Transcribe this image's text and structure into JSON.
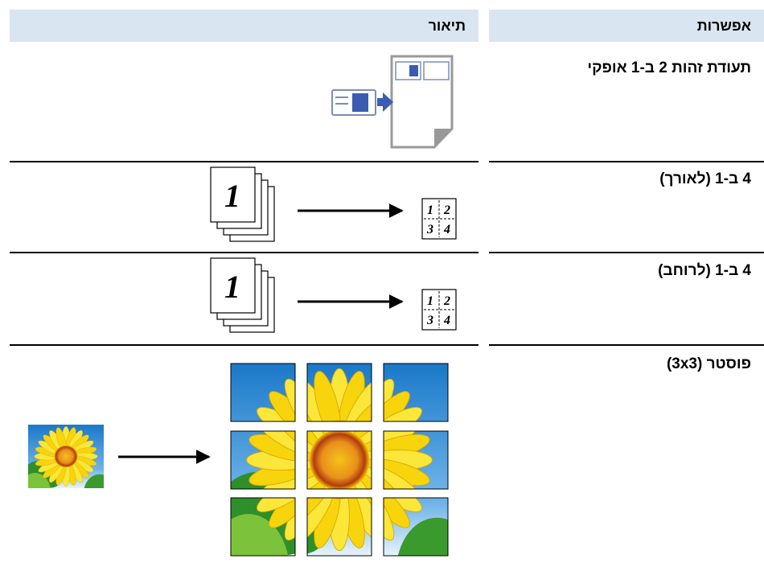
{
  "header": {
    "option": "אפשרות",
    "description": "תיאור"
  },
  "rows": [
    {
      "option": "תעודת זהות 2 ב-1 אופקי"
    },
    {
      "option": "4 ב-1 (לאורך)",
      "illustration": {
        "page": "1",
        "grid": [
          "1",
          "2",
          "3",
          "4"
        ]
      }
    },
    {
      "option": "4 ב-1 (לרוחב)",
      "illustration": {
        "page": "1",
        "grid": [
          "1",
          "2",
          "3",
          "4"
        ]
      }
    },
    {
      "option": "פוסטר (3x3)"
    }
  ]
}
